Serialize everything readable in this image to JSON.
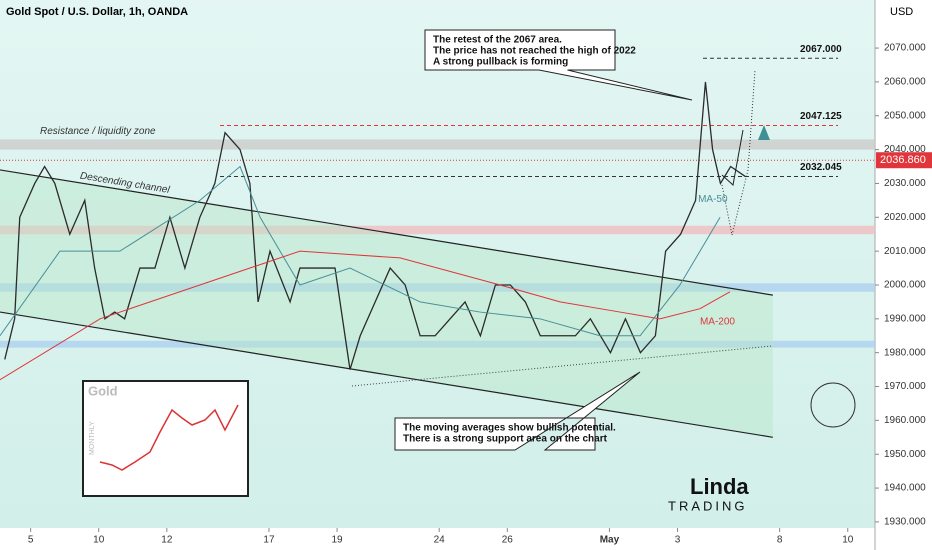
{
  "chart_data": {
    "type": "line",
    "title": "Gold Spot / U.S. Dollar, 1h, OANDA",
    "currency": "USD",
    "xlim": [
      -0.9,
      24.8
    ],
    "xticks": [
      {
        "value": 0,
        "label": "5"
      },
      {
        "value": 2,
        "label": "10"
      },
      {
        "value": 4,
        "label": "12"
      },
      {
        "value": 7,
        "label": "17"
      },
      {
        "value": 9,
        "label": "19"
      },
      {
        "value": 12,
        "label": "24"
      },
      {
        "value": 14,
        "label": "26"
      },
      {
        "value": 17,
        "label": "May"
      },
      {
        "value": 19,
        "label": "3"
      },
      {
        "value": 22,
        "label": "8"
      },
      {
        "value": 24,
        "label": "10"
      }
    ],
    "ylim": [
      1928.2,
      2084.2
    ],
    "yticks": [
      {
        "value": 1930,
        "label": "1930.000"
      },
      {
        "value": 1940,
        "label": "1940.000"
      },
      {
        "value": 1950,
        "label": "1950.000"
      },
      {
        "value": 1960,
        "label": "1960.000"
      },
      {
        "value": 1970,
        "label": "1970.000"
      },
      {
        "value": 1980,
        "label": "1980.000"
      },
      {
        "value": 1990,
        "label": "1990.000"
      },
      {
        "value": 2000,
        "label": "2000.000"
      },
      {
        "value": 2010,
        "label": "2010.000"
      },
      {
        "value": 2020,
        "label": "2020.000"
      },
      {
        "value": 2030,
        "label": "2030.000"
      },
      {
        "value": 2040,
        "label": "2040.000"
      },
      {
        "value": 2050,
        "label": "2050.000"
      },
      {
        "value": 2060,
        "label": "2060.000"
      },
      {
        "value": 2070,
        "label": "2070.000"
      }
    ],
    "series": [
      {
        "color": "#2b2b2b",
        "x": [
          -0.76,
          -0.47,
          -0.32,
          0.12,
          0.41,
          0.71,
          1.15,
          1.59,
          1.88,
          2.18,
          2.47,
          2.76,
          3.21,
          3.65,
          4.09,
          4.53,
          4.97,
          5.41,
          5.71,
          6.15,
          6.44,
          6.68,
          7.03,
          7.62,
          7.91,
          8.5,
          8.94,
          9.38,
          9.68,
          10.12,
          10.56,
          11,
          11.44,
          11.88,
          12.32,
          12.76,
          13.21,
          13.65,
          14.09,
          14.53,
          14.97,
          15.56,
          16,
          16.44,
          17.03,
          17.47,
          17.91,
          18.35,
          18.65,
          19.09,
          19.53,
          19.82,
          20.03,
          20.26,
          20.56,
          21
        ],
        "values": [
          1978,
          1990,
          2020,
          2030,
          2035,
          2030,
          2015,
          2025,
          2005,
          1990,
          1992,
          1990,
          2005,
          2005,
          2020,
          2005,
          2020,
          2030,
          2045,
          2040,
          2030,
          1995,
          2010,
          1995,
          2005,
          2005,
          2005,
          1975,
          1985,
          1995,
          2005,
          2000,
          1985,
          1985,
          1990,
          1995,
          1985,
          2000,
          2000,
          1995,
          1985,
          1985,
          1985,
          1990,
          1980,
          1990,
          1980,
          1985,
          2010,
          2015,
          2025,
          2060,
          2040,
          2030,
          2035,
          2032
        ]
      },
      {
        "name": "MA-50",
        "color": "#4a8e98",
        "x": [
          -0.9,
          0.86,
          2.62,
          4.97,
          6.15,
          6.74,
          7.91,
          9.38,
          11.44,
          13.2,
          14.96,
          16.72,
          17.9,
          19.07,
          20.25
        ],
        "values": [
          1985,
          2010,
          2010,
          2025,
          2035,
          2020,
          2000,
          2005,
          1995,
          1992,
          1990,
          1985,
          1985,
          2000,
          2020
        ]
      },
      {
        "name": "MA-200",
        "color": "#e0353b",
        "x": [
          -0.9,
          2.04,
          4.97,
          7.91,
          10.85,
          13.79,
          15.55,
          17.31,
          18.48,
          19.66,
          20.54
        ],
        "values": [
          1972,
          1990,
          2000,
          2010,
          2008,
          2000,
          1995,
          1992,
          1990,
          1993,
          1998
        ]
      }
    ],
    "levels": [
      {
        "value": 2067,
        "label": "2067.000"
      },
      {
        "value": 2047.125,
        "label": "2047.125"
      },
      {
        "value": 2032.045,
        "label": "2032.045"
      }
    ],
    "current_price": {
      "value": 2036.86,
      "label": "2036.860"
    },
    "zones": [
      {
        "label": "Resistance / liquidity zone",
        "range": [
          2040,
          2043
        ],
        "color": "#c9c9c9"
      },
      {
        "range": [
          2015,
          2017.5
        ],
        "color": "#f3b9bd"
      },
      {
        "range": [
          1998,
          2000.5
        ],
        "color": "#a9cdf0"
      },
      {
        "range": [
          1981.5,
          1983.5
        ],
        "color": "#a9cdf0"
      }
    ],
    "channel": {
      "label": "Descending channel",
      "x": [
        -0.9,
        21.8
      ],
      "upper": [
        2034,
        1997
      ],
      "lower": [
        1992,
        1955
      ]
    },
    "annotations": [
      {
        "lines": [
          "The retest of the 2067 area.",
          "The price has not reached the high of 2022",
          "A strong pullback is forming"
        ]
      },
      {
        "lines": [
          "The moving averages show bullish potential.",
          "There is a strong support area on the chart"
        ]
      }
    ],
    "inset": {
      "title": "Gold",
      "period": "MONTHLY"
    },
    "logo": {
      "name": "Linda",
      "tagline": "TRADING"
    }
  }
}
